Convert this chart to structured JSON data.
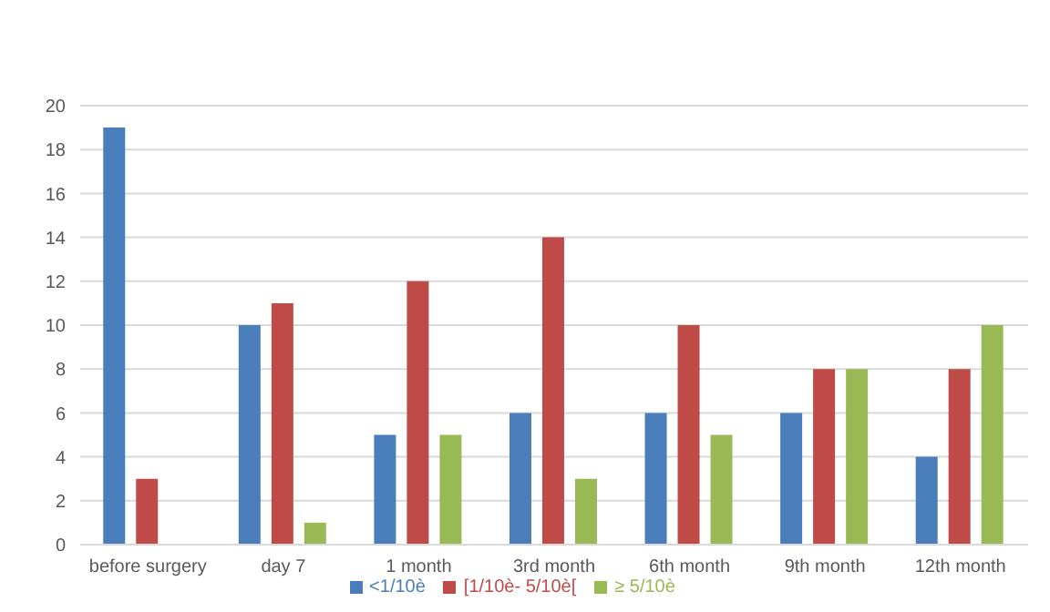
{
  "chart_data": {
    "type": "bar",
    "categories": [
      "before surgery",
      "day 7",
      "1 month",
      "3rd month",
      "6th month",
      "9th month",
      "12th month"
    ],
    "series": [
      {
        "name": "<1/10è",
        "color": "#4a7ebb",
        "values": [
          19,
          10,
          5,
          6,
          6,
          6,
          4
        ]
      },
      {
        "name": "[1/10è- 5/10è[",
        "color": "#be4b48",
        "values": [
          3,
          11,
          12,
          14,
          10,
          8,
          8
        ]
      },
      {
        "name": "≥ 5/10è",
        "color": "#98b954",
        "values": [
          0,
          1,
          5,
          3,
          5,
          8,
          10
        ]
      }
    ],
    "ylim": [
      0,
      20
    ],
    "yticks": [
      0,
      2,
      4,
      6,
      8,
      10,
      12,
      14,
      16,
      18,
      20
    ],
    "grid": "y",
    "legend": "bottom"
  }
}
